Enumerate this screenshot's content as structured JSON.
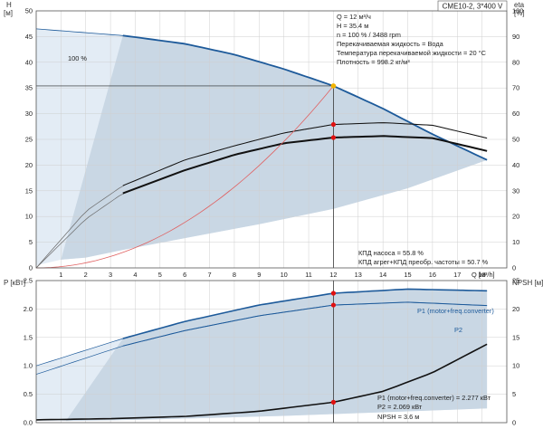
{
  "header": {
    "model": "CME10-2, 3*400 V",
    "left_axis_label": "H",
    "left_axis_unit": "[м]",
    "right_axis_label": "eta",
    "right_axis_unit": "[%]",
    "top_info": [
      "Q = 12 м³/ч",
      "H = 35.4 м",
      "n = 100 % / 3488 rpm",
      "Перекачиваемая жидкость = Вода",
      "Температура перекачиваемой жидкости = 20 °C",
      "Плотность = 998.2 кг/м³"
    ],
    "efficiency_info": [
      "КПД насоса = 55.8 %",
      "КПД агрег+КПД преобр. частоты = 50.7 %"
    ],
    "bottom_info": [
      "P1 (motor+freq.converter) = 2.277 кВт",
      "P2 = 2.069 кВт",
      "NPSH = 3.6 м"
    ]
  },
  "colors": {
    "operating_area": "#c9d7e4",
    "operating_area_light": "#e3ecf5",
    "curve_blue": "#1d5a9a",
    "curve_black": "#111111",
    "curve_gray": "#6a6a6a",
    "system_curve": "#e06060",
    "duty_point": "#e01010",
    "duty_point_top": "#f2b400"
  },
  "chart_data": [
    {
      "type": "line",
      "title": "",
      "xlabel": "Q [м³/h]",
      "ylabel": "H [м]",
      "y2label": "eta [%]",
      "xlim": [
        0,
        19
      ],
      "ylim": [
        0,
        50
      ],
      "y2lim": [
        0,
        100
      ],
      "x_ticks": [
        "1",
        "2",
        "3",
        "4",
        "5",
        "6",
        "7",
        "8",
        "9",
        "10",
        "11",
        "12",
        "13",
        "14",
        "15",
        "16",
        "17",
        "18"
      ],
      "y_ticks": [
        "0",
        "5",
        "10",
        "15",
        "20",
        "25",
        "30",
        "35",
        "40",
        "45",
        "50"
      ],
      "y2_ticks": [
        "0",
        "10",
        "20",
        "30",
        "40",
        "50",
        "60",
        "70",
        "80",
        "90",
        "100"
      ],
      "grid": true,
      "speed_label": "100 %",
      "duty_point": {
        "q": 12,
        "h": 35.4
      },
      "series": [
        {
          "key": "head",
          "axis": "left",
          "x": [
            0,
            3.5,
            6,
            8,
            10,
            12,
            14,
            16,
            18.2
          ],
          "values": [
            46.5,
            45.2,
            43.6,
            41.5,
            38.7,
            35.4,
            31.0,
            26.0,
            21.0
          ]
        },
        {
          "key": "eta_pump",
          "axis": "right",
          "x": [
            0,
            2,
            3.5,
            6,
            8,
            10,
            12,
            14,
            16,
            18.2
          ],
          "values": [
            0,
            22,
            32,
            42,
            47.5,
            52.5,
            55.8,
            56.5,
            55.5,
            50.5
          ]
        },
        {
          "key": "eta_total",
          "axis": "right",
          "x": [
            0,
            2,
            3.5,
            6,
            8,
            10,
            12,
            14,
            16,
            18.2
          ],
          "values": [
            0,
            19,
            29,
            38,
            44,
            48.5,
            50.7,
            51.3,
            50.5,
            45.5
          ]
        },
        {
          "key": "system",
          "axis": "left",
          "x": [
            0,
            3,
            6,
            9,
            12
          ],
          "values": [
            0,
            2.5,
            8.8,
            19.9,
            35.4
          ]
        }
      ],
      "efficiency_markers": [
        55.8,
        50.7
      ]
    },
    {
      "type": "line",
      "title": "",
      "xlabel": "",
      "ylabel": "P [кВт]",
      "y2label": "NPSH [м]",
      "xlim": [
        0,
        19
      ],
      "ylim": [
        0,
        2.5
      ],
      "y2lim": [
        0,
        25
      ],
      "y_ticks": [
        "0.0",
        "0.5",
        "1.0",
        "1.5",
        "2.0",
        "2.5"
      ],
      "y2_ticks": [
        "0",
        "5",
        "10",
        "15",
        "20",
        "25"
      ],
      "grid": true,
      "series": [
        {
          "key": "P1",
          "name": "P1 (motor+freq.converter)",
          "axis": "left",
          "x": [
            0,
            3.5,
            6,
            9,
            12,
            15,
            18.2
          ],
          "values": [
            1.0,
            1.48,
            1.78,
            2.07,
            2.277,
            2.35,
            2.32
          ]
        },
        {
          "key": "P2",
          "name": "P2",
          "axis": "left",
          "x": [
            0,
            3.5,
            6,
            9,
            12,
            15,
            18.2
          ],
          "values": [
            0.85,
            1.35,
            1.62,
            1.88,
            2.069,
            2.12,
            2.06
          ]
        },
        {
          "key": "NPSH",
          "axis": "right",
          "x": [
            0,
            3,
            6,
            9,
            12,
            14,
            16,
            18.2
          ],
          "values": [
            0.5,
            0.7,
            1.1,
            2.0,
            3.6,
            5.5,
            8.8,
            13.8
          ]
        }
      ],
      "duty_markers": {
        "P1": 2.277,
        "P2": 2.069,
        "NPSH": 3.6
      }
    }
  ]
}
